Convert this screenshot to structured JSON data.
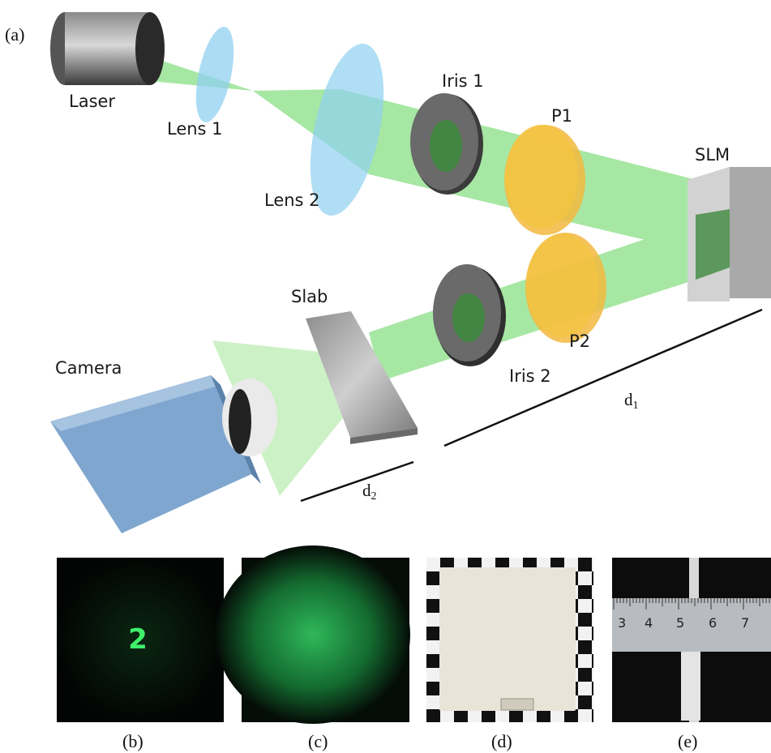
{
  "figure": {
    "panel_a": "(a)",
    "components": {
      "laser": "Laser",
      "lens1": "Lens 1",
      "lens2": "Lens 2",
      "iris1": "Iris 1",
      "p1": "P1",
      "slm": "SLM",
      "p2": "P2",
      "iris2": "Iris 2",
      "slab": "Slab",
      "camera": "Camera"
    },
    "distances": {
      "d1": "d",
      "d1_sub": "1",
      "d2": "d",
      "d2_sub": "2"
    },
    "photo_panels": [
      "(b)",
      "(c)",
      "(d)",
      "(e)"
    ],
    "photo_b_digit": "2",
    "ruler_numbers": [
      "3",
      "4",
      "5",
      "6",
      "7"
    ],
    "colors": {
      "beam": "#5fd35a",
      "lens": "#8fd0f0",
      "polarizer": "#f5c542",
      "camera": "#7fa6cf",
      "iris": "#555555",
      "slm": "#c8c8c8"
    }
  }
}
